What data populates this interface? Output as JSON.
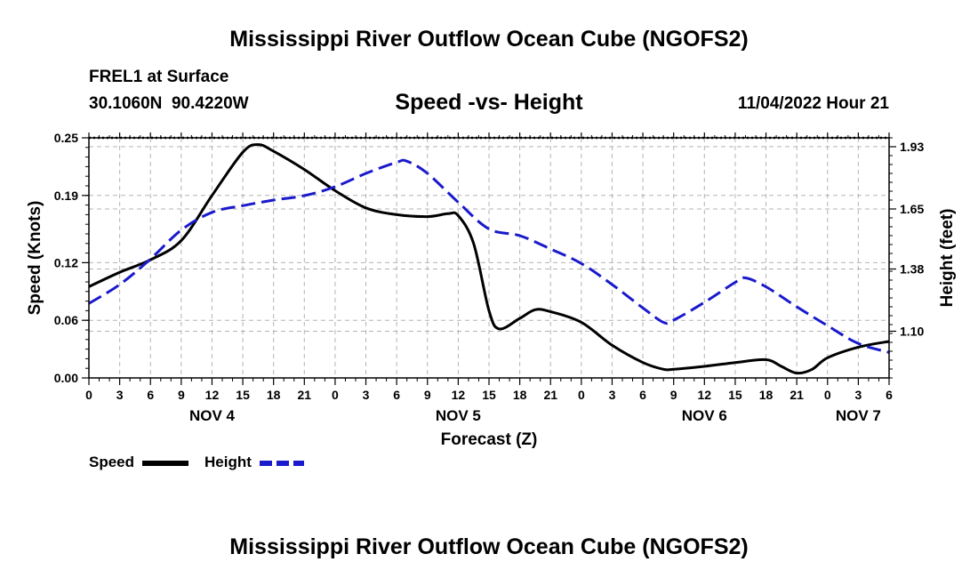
{
  "page_title": "Mississippi River Outflow Ocean Cube (NGOFS2)",
  "station": {
    "name": "FREL1 at Surface",
    "coords": "30.1060N  90.4220W",
    "datetime": "11/04/2022 Hour 21"
  },
  "repeated_title": "Mississippi River Outflow Ocean Cube (NGOFS2)",
  "chart_data": {
    "type": "line",
    "title": "Speed -vs- Height",
    "xlabel": "Forecast (Z)",
    "ylabel_left": "Speed (Knots)",
    "ylabel_right": "Height (feet)",
    "x_range_hours": [
      0,
      78
    ],
    "x_ticks": [
      {
        "h": 0,
        "label": "0"
      },
      {
        "h": 3,
        "label": "3"
      },
      {
        "h": 6,
        "label": "6"
      },
      {
        "h": 9,
        "label": "9"
      },
      {
        "h": 12,
        "label": "12"
      },
      {
        "h": 15,
        "label": "15"
      },
      {
        "h": 18,
        "label": "18"
      },
      {
        "h": 21,
        "label": "21"
      },
      {
        "h": 24,
        "label": "0"
      },
      {
        "h": 27,
        "label": "3"
      },
      {
        "h": 30,
        "label": "6"
      },
      {
        "h": 33,
        "label": "9"
      },
      {
        "h": 36,
        "label": "12"
      },
      {
        "h": 39,
        "label": "15"
      },
      {
        "h": 42,
        "label": "18"
      },
      {
        "h": 45,
        "label": "21"
      },
      {
        "h": 48,
        "label": "0"
      },
      {
        "h": 51,
        "label": "3"
      },
      {
        "h": 54,
        "label": "6"
      },
      {
        "h": 57,
        "label": "9"
      },
      {
        "h": 60,
        "label": "12"
      },
      {
        "h": 63,
        "label": "15"
      },
      {
        "h": 66,
        "label": "18"
      },
      {
        "h": 69,
        "label": "21"
      },
      {
        "h": 72,
        "label": "0"
      },
      {
        "h": 75,
        "label": "3"
      },
      {
        "h": 78,
        "label": "6"
      }
    ],
    "day_labels": [
      {
        "h": 12,
        "label": "NOV 4"
      },
      {
        "h": 36,
        "label": "NOV 5"
      },
      {
        "h": 60,
        "label": "NOV 6"
      },
      {
        "h": 75,
        "label": "NOV 7"
      }
    ],
    "y_left": {
      "min": 0.0,
      "max": 0.25,
      "ticks": [
        0.0,
        0.06,
        0.12,
        0.19,
        0.25
      ],
      "tick_labels": [
        "0.00",
        "0.06",
        "0.12",
        "0.19",
        "0.25"
      ]
    },
    "y_right": {
      "min": 0.89,
      "max": 1.97,
      "ticks": [
        1.1,
        1.38,
        1.65,
        1.93
      ],
      "tick_labels": [
        "1.10",
        "1.38",
        "1.65",
        "1.93"
      ]
    },
    "series": [
      {
        "name": "Speed",
        "axis": "left",
        "color": "#000000",
        "style": "solid",
        "points": [
          [
            0,
            0.095
          ],
          [
            3,
            0.11
          ],
          [
            6,
            0.123
          ],
          [
            9,
            0.143
          ],
          [
            12,
            0.19
          ],
          [
            15,
            0.235
          ],
          [
            16.5,
            0.243
          ],
          [
            18,
            0.236
          ],
          [
            21,
            0.217
          ],
          [
            24,
            0.195
          ],
          [
            27,
            0.177
          ],
          [
            30,
            0.17
          ],
          [
            33,
            0.168
          ],
          [
            35,
            0.171
          ],
          [
            36,
            0.169
          ],
          [
            37.5,
            0.14
          ],
          [
            39,
            0.07
          ],
          [
            40,
            0.051
          ],
          [
            42,
            0.062
          ],
          [
            43.5,
            0.071
          ],
          [
            45,
            0.069
          ],
          [
            48,
            0.058
          ],
          [
            51,
            0.034
          ],
          [
            54,
            0.016
          ],
          [
            56,
            0.009
          ],
          [
            57,
            0.009
          ],
          [
            60,
            0.012
          ],
          [
            63,
            0.016
          ],
          [
            66,
            0.019
          ],
          [
            67.5,
            0.012
          ],
          [
            69,
            0.005
          ],
          [
            70.5,
            0.009
          ],
          [
            72,
            0.021
          ],
          [
            75,
            0.032
          ],
          [
            78,
            0.038
          ]
        ]
      },
      {
        "name": "Height",
        "axis": "right",
        "color": "#1a1acc",
        "style": "dashed",
        "points": [
          [
            0,
            1.225
          ],
          [
            3,
            1.31
          ],
          [
            6,
            1.425
          ],
          [
            9,
            1.555
          ],
          [
            12,
            1.635
          ],
          [
            15,
            1.665
          ],
          [
            18,
            1.69
          ],
          [
            21,
            1.71
          ],
          [
            24,
            1.75
          ],
          [
            27,
            1.81
          ],
          [
            30,
            1.86
          ],
          [
            31,
            1.865
          ],
          [
            33,
            1.81
          ],
          [
            36,
            1.68
          ],
          [
            39,
            1.56
          ],
          [
            42,
            1.53
          ],
          [
            45,
            1.47
          ],
          [
            48,
            1.405
          ],
          [
            51,
            1.31
          ],
          [
            54,
            1.205
          ],
          [
            56,
            1.14
          ],
          [
            57,
            1.15
          ],
          [
            60,
            1.23
          ],
          [
            63,
            1.32
          ],
          [
            64,
            1.34
          ],
          [
            66,
            1.3
          ],
          [
            69,
            1.21
          ],
          [
            72,
            1.125
          ],
          [
            75,
            1.045
          ],
          [
            78,
            1.005
          ]
        ]
      }
    ]
  }
}
